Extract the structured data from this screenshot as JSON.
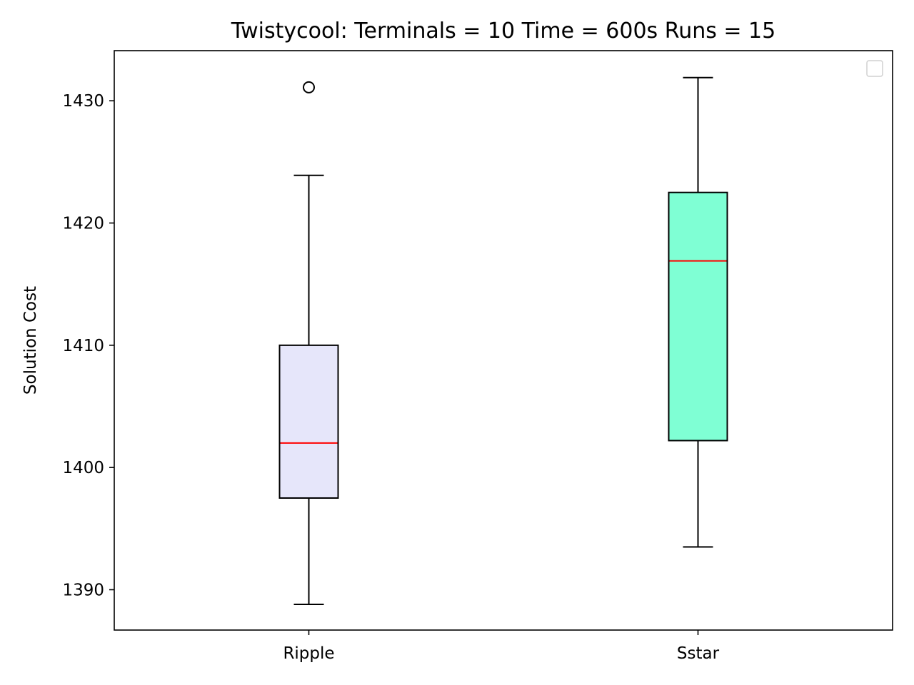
{
  "chart_data": {
    "type": "box",
    "title": "Twistycool:  Terminals = 10  Time = 600s  Runs = 15",
    "xlabel": "",
    "ylabel": "Solution Cost",
    "ylim": [
      1386.7,
      1434.1
    ],
    "yticks": [
      1390,
      1400,
      1410,
      1420,
      1430
    ],
    "categories": [
      "Ripple",
      "Sstar"
    ],
    "boxes": [
      {
        "category": "Ripple",
        "whisker_low": 1388.8,
        "q1": 1397.5,
        "median": 1402.0,
        "q3": 1410.0,
        "whisker_high": 1423.9,
        "outliers": [
          1431.1
        ],
        "fill": "#e6e6fa"
      },
      {
        "category": "Sstar",
        "whisker_low": 1393.5,
        "q1": 1402.2,
        "median": 1416.9,
        "q3": 1422.5,
        "whisker_high": 1431.9,
        "outliers": [],
        "fill": "#7fffd4"
      }
    ],
    "median_color": "#ff0000",
    "grid": false,
    "legend": {
      "position": "top-right",
      "entries": []
    }
  }
}
